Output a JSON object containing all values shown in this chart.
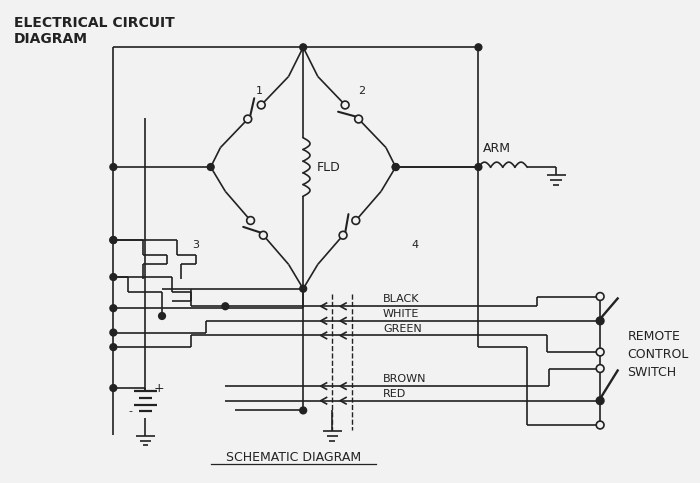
{
  "title": "ELECTRICAL CIRCUIT\nDIAGRAM",
  "subtitle": "SCHEMATIC DIAGRAM",
  "bg_color": "#f2f2f2",
  "line_color": "#222222",
  "labels": {
    "fld": "FLD",
    "arm": "ARM",
    "black": "BLACK",
    "white": "WHITE",
    "green": "GREEN",
    "brown": "BROWN",
    "red": "RED",
    "remote": "REMOTE\nCONTROL\nSWITCH",
    "pos": "+",
    "neg": "-",
    "num1": "1",
    "num2": "2",
    "num3": "3",
    "num4": "4"
  },
  "figsize": [
    7.0,
    4.83
  ],
  "dpi": 100,
  "xlim": [
    0,
    700
  ],
  "ylim": [
    0,
    483
  ]
}
